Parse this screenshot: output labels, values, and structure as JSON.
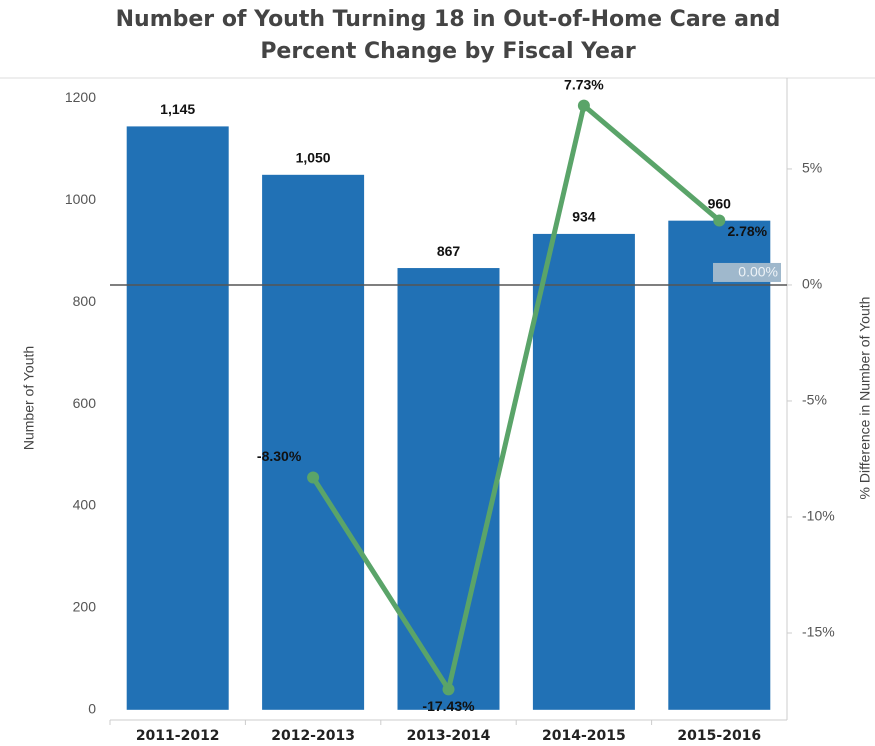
{
  "chart_data": {
    "type": "bar_line",
    "title": [
      "Number of Youth Turning 18 in Out-of-Home Care and",
      "Percent Change by Fiscal Year"
    ],
    "y_label": "Number of Youth",
    "y2_label": "% Difference in Number of Youth",
    "categories": [
      "2011-2012",
      "2012-2013",
      "2013-2014",
      "2014-2015",
      "2015-2016"
    ],
    "series": [
      {
        "name": "Number of Youth",
        "type": "bar",
        "color": "#2171b5",
        "values": [
          1145,
          1050,
          867,
          934,
          960
        ],
        "value_labels": [
          "1,145",
          "1,050",
          "867",
          "934",
          "960"
        ]
      },
      {
        "name": "% Difference in Number of Youth",
        "type": "line",
        "axis": "y2",
        "color": "#5aa469",
        "values": [
          null,
          -8.3,
          -17.43,
          7.73,
          2.78
        ],
        "value_labels": [
          null,
          "-8.30%",
          "-17.43%",
          "7.73%",
          "2.78%"
        ]
      }
    ],
    "ylim": [
      -20,
      1240
    ],
    "yticks": [
      0,
      200,
      400,
      600,
      800,
      1000,
      1200
    ],
    "y2lim": [
      -18.75,
      8.92
    ],
    "y2ticks": [
      {
        "value": -15,
        "label": "-15%"
      },
      {
        "value": -10,
        "label": "-10%"
      },
      {
        "value": -5,
        "label": "-5%"
      },
      {
        "value": 0,
        "label": "0%"
      },
      {
        "value": 5,
        "label": "5%"
      }
    ],
    "reference_line": {
      "value": 0,
      "label": "0.00%",
      "axis": "y2"
    }
  }
}
